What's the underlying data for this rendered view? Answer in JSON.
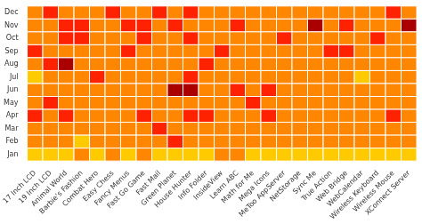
{
  "chart_data": {
    "type": "heatmap",
    "categories": [
      "17 Inch LCD",
      "19 Inch LCD",
      "Animal World",
      "Barbie's Fashion",
      "Combat Hero",
      "Easy Chess",
      "Fancy Menus",
      "Fast Go Game",
      "Fast Mail",
      "Green Planet",
      "House Hunter",
      "Info Folder",
      "InsideView",
      "Learn ABC",
      "Math for Me",
      "Mega Icons",
      "MeToo AppServer",
      "NetStorage",
      "Sync Me",
      "True Action",
      "Web Bridge",
      "WebCalendar",
      "Wireless Keyboard",
      "Wireless Mouse",
      "XConnect Server"
    ],
    "rows": [
      "Dec",
      "Nov",
      "Oct",
      "Sep",
      "Aug",
      "Jul",
      "Jun",
      "May",
      "Apr",
      "Mar",
      "Feb",
      "Jan"
    ],
    "cells": [
      [
        3,
        4,
        3,
        3,
        3,
        4,
        3,
        3,
        4,
        3,
        4,
        3,
        3,
        3,
        3,
        3,
        3,
        3,
        3,
        3,
        3,
        3,
        3,
        4,
        3
      ],
      [
        3,
        3,
        4,
        4,
        3,
        3,
        4,
        4,
        3,
        4,
        3,
        3,
        3,
        4,
        3,
        3,
        3,
        3,
        5,
        3,
        4,
        3,
        3,
        3,
        5
      ],
      [
        3,
        3,
        4,
        4,
        3,
        3,
        3,
        4,
        3,
        3,
        4,
        3,
        3,
        3,
        3,
        3,
        4,
        3,
        3,
        3,
        3,
        3,
        4,
        3,
        3
      ],
      [
        4,
        3,
        3,
        3,
        3,
        3,
        4,
        3,
        3,
        3,
        3,
        3,
        4,
        3,
        3,
        3,
        3,
        3,
        3,
        4,
        4,
        3,
        3,
        3,
        3
      ],
      [
        3,
        4,
        5,
        3,
        3,
        3,
        3,
        3,
        3,
        3,
        3,
        4,
        3,
        3,
        3,
        3,
        3,
        3,
        3,
        3,
        3,
        3,
        3,
        3,
        3
      ],
      [
        2,
        3,
        3,
        3,
        4,
        3,
        3,
        3,
        3,
        3,
        4,
        3,
        3,
        3,
        3,
        3,
        3,
        3,
        3,
        3,
        3,
        2,
        3,
        3,
        3
      ],
      [
        3,
        3,
        3,
        3,
        3,
        3,
        3,
        3,
        3,
        5,
        5,
        3,
        3,
        4,
        3,
        4,
        3,
        3,
        3,
        3,
        3,
        3,
        3,
        3,
        3
      ],
      [
        3,
        4,
        3,
        3,
        3,
        3,
        3,
        3,
        3,
        3,
        3,
        3,
        3,
        3,
        4,
        3,
        3,
        3,
        3,
        3,
        3,
        3,
        3,
        3,
        3
      ],
      [
        4,
        3,
        4,
        3,
        3,
        3,
        3,
        4,
        3,
        3,
        4,
        4,
        3,
        3,
        3,
        4,
        3,
        3,
        3,
        3,
        3,
        3,
        3,
        4,
        3
      ],
      [
        3,
        3,
        3,
        3,
        3,
        3,
        3,
        3,
        4,
        3,
        3,
        3,
        3,
        3,
        3,
        3,
        3,
        3,
        3,
        3,
        3,
        3,
        3,
        3,
        3
      ],
      [
        3,
        3,
        3,
        2,
        3,
        3,
        3,
        3,
        3,
        4,
        3,
        3,
        3,
        3,
        3,
        3,
        3,
        3,
        3,
        3,
        3,
        3,
        3,
        3,
        3
      ],
      [
        2,
        2,
        2,
        3,
        2,
        3,
        2,
        3,
        2,
        2,
        2,
        2,
        3,
        3,
        2,
        2,
        2,
        2,
        2,
        2,
        2,
        2,
        2,
        2,
        2
      ]
    ],
    "color_range": [
      1,
      5
    ],
    "grid": false
  }
}
